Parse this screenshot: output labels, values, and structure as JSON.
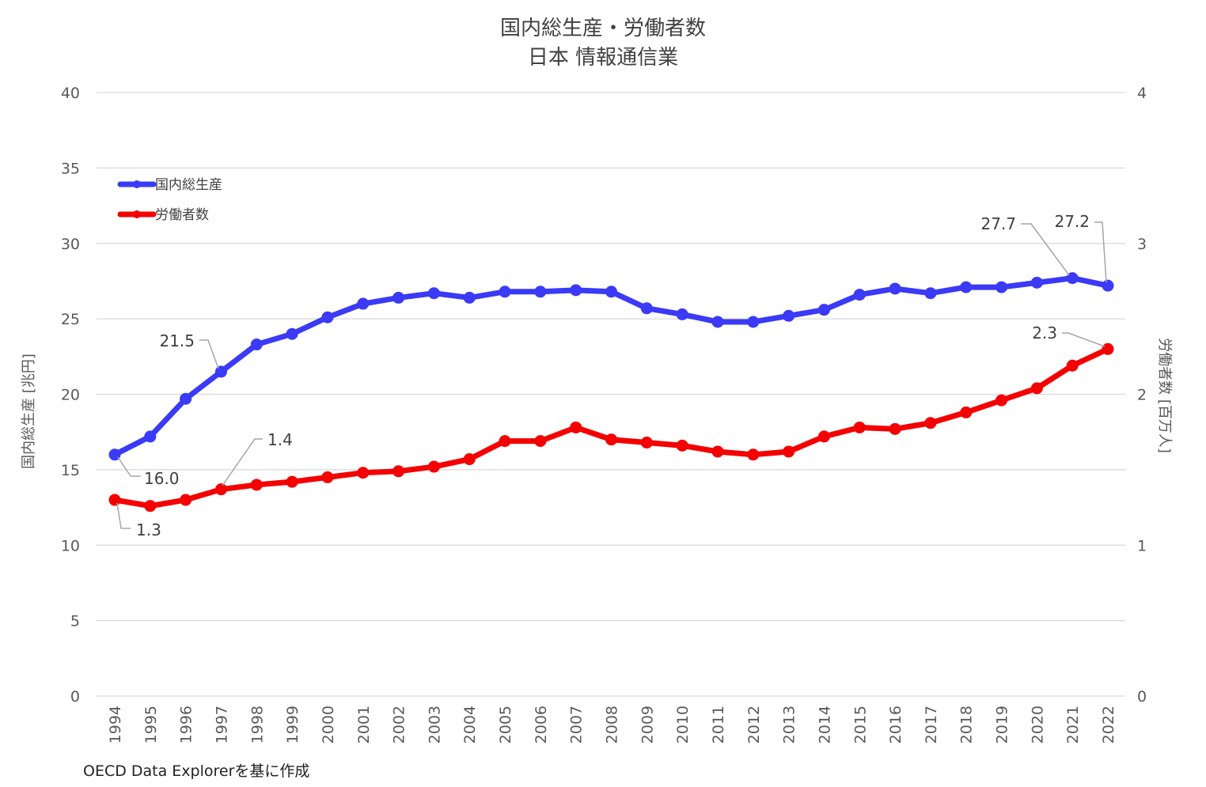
{
  "chart_data": {
    "type": "line",
    "title": [
      "国内総生産・労働者数",
      "日本 情報通信業"
    ],
    "x": [
      "1994",
      "1995",
      "1996",
      "1997",
      "1998",
      "1999",
      "2000",
      "2001",
      "2002",
      "2003",
      "2004",
      "2005",
      "2006",
      "2007",
      "2008",
      "2009",
      "2010",
      "2011",
      "2012",
      "2013",
      "2014",
      "2015",
      "2016",
      "2017",
      "2018",
      "2019",
      "2020",
      "2021",
      "2022"
    ],
    "series": [
      {
        "name": "国内総生産",
        "axis": "left",
        "color": "#3a3af7",
        "values": [
          16.0,
          17.2,
          19.7,
          21.5,
          23.3,
          24.0,
          25.1,
          26.0,
          26.4,
          26.7,
          26.4,
          26.8,
          26.8,
          26.9,
          26.8,
          25.7,
          25.3,
          24.8,
          24.8,
          25.2,
          25.6,
          26.6,
          27.0,
          26.7,
          27.1,
          27.1,
          27.4,
          27.7,
          27.2
        ]
      },
      {
        "name": "労働者数",
        "axis": "right",
        "color": "#f40000",
        "values": [
          1.3,
          1.26,
          1.3,
          1.37,
          1.4,
          1.42,
          1.45,
          1.48,
          1.49,
          1.52,
          1.57,
          1.69,
          1.69,
          1.78,
          1.7,
          1.68,
          1.66,
          1.62,
          1.6,
          1.62,
          1.72,
          1.78,
          1.77,
          1.81,
          1.88,
          1.96,
          2.04,
          2.19,
          2.3
        ]
      }
    ],
    "y_left": {
      "label": "国内総生産 [兆円]",
      "ylim": [
        0,
        40
      ],
      "ticks": [
        "0",
        "5",
        "10",
        "15",
        "20",
        "25",
        "30",
        "35",
        "40"
      ]
    },
    "y_right": {
      "label": "労働者数 [百万人]",
      "ylim": [
        0,
        4
      ],
      "ticks": [
        "0",
        "1",
        "2",
        "3",
        "4"
      ]
    },
    "grid": true,
    "legend_position": "top-left",
    "annotations": [
      {
        "series": 0,
        "x": "1994",
        "text": "16.0"
      },
      {
        "series": 0,
        "x": "1997",
        "text": "21.5"
      },
      {
        "series": 0,
        "x": "2021",
        "text": "27.7"
      },
      {
        "series": 0,
        "x": "2022",
        "text": "27.2"
      },
      {
        "series": 1,
        "x": "1994",
        "text": "1.3"
      },
      {
        "series": 1,
        "x": "1997",
        "text": "1.4"
      },
      {
        "series": 1,
        "x": "2022",
        "text": "2.3"
      }
    ],
    "source": "OECD Data Explorerを基に作成"
  }
}
